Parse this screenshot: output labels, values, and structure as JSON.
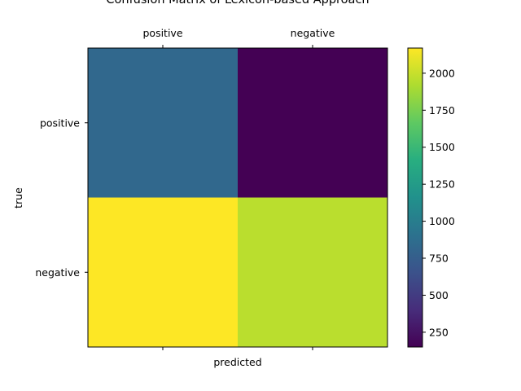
{
  "chart_data": {
    "type": "heatmap",
    "title": "Confusion Matrix of Lexicon-based Approach",
    "xlabel": "predicted",
    "ylabel": "true",
    "x_categories": [
      "positive",
      "negative"
    ],
    "y_categories": [
      "positive",
      "negative"
    ],
    "values": [
      [
        830,
        150
      ],
      [
        2170,
        1960
      ]
    ],
    "colormap": "viridis",
    "colorbar": {
      "min": 150,
      "max": 2170,
      "ticks": [
        250,
        500,
        750,
        1000,
        1250,
        1500,
        1750,
        2000
      ]
    },
    "x_ticks_top": true,
    "grid": false
  }
}
